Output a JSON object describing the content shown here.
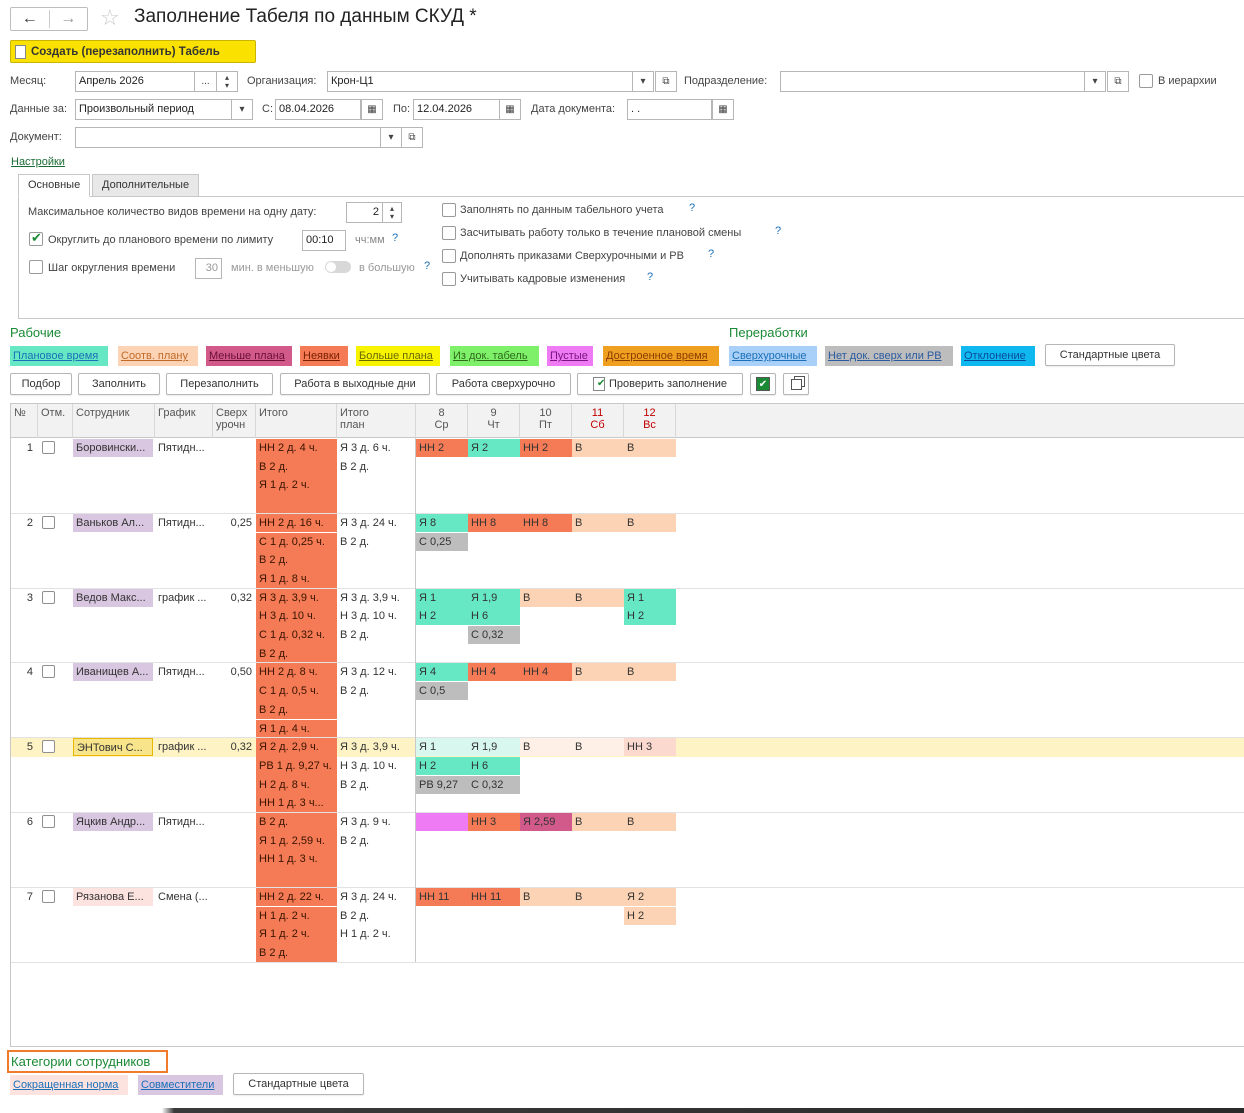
{
  "window": {
    "title": "Заполнение Табеля по данным СКУД *"
  },
  "nav": {
    "back": "←",
    "forward": "→",
    "star": "☆"
  },
  "toolbar": {
    "create_label": "Создать (перезаполнить) Табель"
  },
  "form": {
    "month_label": "Месяц:",
    "month_value": "Апрель 2026",
    "org_label": "Организация:",
    "org_value": "Крон-Ц1",
    "dept_label": "Подразделение:",
    "dept_value": "",
    "hierarchy_label": "В иерархии",
    "data_for_label": "Данные за:",
    "period_value": "Произвольный период",
    "from_label": "С:",
    "from_value": "08.04.2026",
    "to_label": "По:",
    "to_value": "12.04.2026",
    "docdate_label": "Дата документа:",
    "docdate_value": ". .",
    "document_label": "Документ:",
    "document_value": "",
    "settings_link": "Настройки",
    "ellipsis": "...",
    "dropdown": "▾",
    "open": "⧉",
    "calendar": "▦"
  },
  "tabs": [
    {
      "label": "Основные"
    },
    {
      "label": "Дополнительные"
    }
  ],
  "settings": {
    "max_types_label": "Максимальное количество видов времени на одну дату:",
    "max_types_value": "2",
    "round_label": "Округлить до планового времени по лимиту",
    "round_value": "00:10",
    "round_unit": "чч:мм",
    "step_label": "Шаг округления времени",
    "step_value": "30",
    "step_unit": "мин. в меньшую",
    "step_bigger": "в большую",
    "right_options": [
      {
        "label": "Заполнять по данным табельного учета"
      },
      {
        "label": "Засчитывать работу только в течение плановой смены"
      },
      {
        "label": "Дополнять приказами Сверхурочными и РВ"
      },
      {
        "label": "Учитывать кадровые изменения"
      }
    ],
    "q": "?"
  },
  "legend": {
    "work_title": "Рабочие",
    "overtime_title": "Переработки",
    "items": [
      {
        "label": "Плановое время",
        "bg": "#66e8c4",
        "color": "#1a6fb7"
      },
      {
        "label": "Соотв. плану",
        "bg": "#fcd3b4",
        "color": "#c06a2a"
      },
      {
        "label": "Меньше плана",
        "bg": "#d25a8a",
        "color": "#6a1035"
      },
      {
        "label": "Неявки",
        "bg": "#f47b55",
        "color": "#7a1e00"
      },
      {
        "label": "Больше плана",
        "bg": "#f8f400",
        "color": "#6a6a00"
      },
      {
        "label": "Из док. табель",
        "bg": "#7ef06a",
        "color": "#2f6a1a"
      },
      {
        "label": "Пустые",
        "bg": "#ee7af4",
        "color": "#7a1580"
      },
      {
        "label": "Достроенное время",
        "bg": "#f0a020",
        "color": "#8a3a00"
      },
      {
        "label": "Сверхурочные",
        "bg": "#a8d0f8",
        "color": "#1a6fb7"
      },
      {
        "label": "Нет док. сверх или РВ",
        "bg": "#bdbdbd",
        "color": "#2a5aa0"
      },
      {
        "label": "Отклонение",
        "bg": "#10b8f0",
        "color": "#0a4a9a"
      }
    ],
    "std_colors_label": "Стандартные цвета"
  },
  "actions": {
    "select": "Подбор",
    "fill": "Заполнить",
    "refill": "Перезаполнить",
    "weekend": "Работа в выходные дни",
    "overtime": "Работа сверхурочно",
    "check": "Проверить заполнение"
  },
  "table": {
    "headers": {
      "num": "№",
      "mark": "Отм.",
      "employee": "Сотрудник",
      "schedule": "График",
      "overtime": "Сверх урочн",
      "total": "Итого",
      "total_plan": "Итого план"
    },
    "days": [
      {
        "d": "8",
        "w": "Ср"
      },
      {
        "d": "9",
        "w": "Чт"
      },
      {
        "d": "10",
        "w": "Пт"
      },
      {
        "d": "11",
        "w": "Сб"
      },
      {
        "d": "12",
        "w": "Вс"
      }
    ],
    "rows": [
      {
        "num": "1",
        "name": "Боровински...",
        "name_bg": "#d9c6e0",
        "sched": "Пятидн...",
        "ot": "",
        "lines": 4,
        "total": [
          "НН 2 д. 4 ч.",
          "В 2 д.",
          "Я 1 д. 2 ч.",
          ""
        ],
        "plan": [
          "Я 3 д. 6 ч.",
          "В 2 д.",
          "",
          ""
        ],
        "days": [
          [
            {
              "t": "НН 2",
              "bg": "#f47b55"
            },
            {
              "t": "Я 2",
              "bg": "#66e8c4"
            },
            {
              "t": "НН 2",
              "bg": "#f47b55"
            },
            {
              "t": "В",
              "bg": "#fcd3b4"
            },
            {
              "t": "В",
              "bg": "#fcd3b4"
            }
          ]
        ]
      },
      {
        "num": "2",
        "name": "Ваньков Ал...",
        "name_bg": "#d9c6e0",
        "sched": "Пятидн...",
        "ot": "0,25",
        "lines": 4,
        "total": [
          "НН 2 д. 16 ч.",
          "С 1 д. 0,25 ч.",
          "В 2 д.",
          "Я 1 д. 8 ч."
        ],
        "plan": [
          "Я 3 д. 24 ч.",
          "В 2 д.",
          "",
          ""
        ],
        "days": [
          [
            {
              "t": "Я 8",
              "bg": "#66e8c4"
            },
            {
              "t": "НН 8",
              "bg": "#f47b55"
            },
            {
              "t": "НН 8",
              "bg": "#f47b55"
            },
            {
              "t": "В",
              "bg": "#fcd3b4"
            },
            {
              "t": "В",
              "bg": "#fcd3b4"
            }
          ],
          [
            {
              "t": "С 0,25",
              "bg": "#bdbdbd"
            },
            {
              "t": "",
              "bg": ""
            },
            {
              "t": "",
              "bg": ""
            },
            {
              "t": "",
              "bg": ""
            },
            {
              "t": "",
              "bg": ""
            }
          ]
        ]
      },
      {
        "num": "3",
        "name": "Ведов Макс...",
        "name_bg": "#d9c6e0",
        "sched": "график ...",
        "ot": "0,32",
        "lines": 4,
        "total": [
          "Я 3 д. 3,9 ч.",
          "Н 3 д. 10 ч.",
          "С 1 д. 0,32 ч.",
          "В 2 д."
        ],
        "plan": [
          "Я 3 д. 3,9 ч.",
          "Н 3 д. 10 ч.",
          "В 2 д.",
          ""
        ],
        "days": [
          [
            {
              "t": "Я 1",
              "bg": "#66e8c4"
            },
            {
              "t": "Я 1,9",
              "bg": "#66e8c4"
            },
            {
              "t": "В",
              "bg": "#fcd3b4"
            },
            {
              "t": "В",
              "bg": "#fcd3b4"
            },
            {
              "t": "Я 1",
              "bg": "#66e8c4"
            }
          ],
          [
            {
              "t": "Н 2",
              "bg": "#66e8c4"
            },
            {
              "t": "Н 6",
              "bg": "#66e8c4"
            },
            {
              "t": "",
              "bg": ""
            },
            {
              "t": "",
              "bg": ""
            },
            {
              "t": "Н 2",
              "bg": "#66e8c4"
            }
          ],
          [
            {
              "t": "",
              "bg": ""
            },
            {
              "t": "С 0,32",
              "bg": "#bdbdbd"
            },
            {
              "t": "",
              "bg": ""
            },
            {
              "t": "",
              "bg": ""
            },
            {
              "t": "",
              "bg": ""
            }
          ]
        ]
      },
      {
        "num": "4",
        "name": "Иванищев А...",
        "name_bg": "#d9c6e0",
        "sched": "Пятидн...",
        "ot": "0,50",
        "lines": 4,
        "total": [
          "НН 2 д. 8 ч.",
          "С 1 д. 0,5 ч.",
          "В 2 д.",
          "Я 1 д. 4 ч."
        ],
        "plan": [
          "Я 3 д. 12 ч.",
          "В 2 д.",
          "",
          ""
        ],
        "days": [
          [
            {
              "t": "Я 4",
              "bg": "#66e8c4"
            },
            {
              "t": "НН 4",
              "bg": "#f47b55"
            },
            {
              "t": "НН 4",
              "bg": "#f47b55"
            },
            {
              "t": "В",
              "bg": "#fcd3b4"
            },
            {
              "t": "В",
              "bg": "#fcd3b4"
            }
          ],
          [
            {
              "t": "С 0,5",
              "bg": "#bdbdbd"
            },
            {
              "t": "",
              "bg": ""
            },
            {
              "t": "",
              "bg": ""
            },
            {
              "t": "",
              "bg": ""
            },
            {
              "t": "",
              "bg": ""
            }
          ]
        ]
      },
      {
        "num": "5",
        "name": "ЭНТович С...",
        "name_bg": "#f8e48a",
        "sched": "график ...",
        "ot": "0,32",
        "lines": 4,
        "selected": true,
        "total": [
          "Я 2 д. 2,9 ч.",
          "РВ 1 д. 9,27 ч.",
          "Н 2 д. 8 ч.",
          "НН 1 д. 3 ч..."
        ],
        "plan": [
          "Я 3 д. 3,9 ч.",
          "Н 3 д. 10 ч.",
          "В 2 д.",
          ""
        ],
        "days": [
          [
            {
              "t": "Я 1",
              "bg": "#d8f7ee"
            },
            {
              "t": "Я 1,9",
              "bg": "#d8f7ee"
            },
            {
              "t": "В",
              "bg": "#fef0e6"
            },
            {
              "t": "В",
              "bg": "#fef0e6"
            },
            {
              "t": "НН 3",
              "bg": "#fbd9cf"
            }
          ],
          [
            {
              "t": "Н 2",
              "bg": "#66e8c4"
            },
            {
              "t": "Н 6",
              "bg": "#66e8c4"
            },
            {
              "t": "",
              "bg": ""
            },
            {
              "t": "",
              "bg": ""
            },
            {
              "t": "",
              "bg": ""
            }
          ],
          [
            {
              "t": "РВ 9,27",
              "bg": "#bdbdbd"
            },
            {
              "t": "С 0,32",
              "bg": "#bdbdbd"
            },
            {
              "t": "",
              "bg": ""
            },
            {
              "t": "",
              "bg": ""
            },
            {
              "t": "",
              "bg": ""
            }
          ]
        ]
      },
      {
        "num": "6",
        "name": "Яцкив Андр...",
        "name_bg": "#d9c6e0",
        "sched": "Пятидн...",
        "ot": "",
        "lines": 4,
        "total": [
          "В 2 д.",
          "Я 1 д. 2,59 ч.",
          "НН 1 д. 3 ч.",
          ""
        ],
        "plan": [
          "Я 3 д. 9 ч.",
          "В 2 д.",
          "",
          ""
        ],
        "days": [
          [
            {
              "t": "",
              "bg": "#ee7af4"
            },
            {
              "t": "НН 3",
              "bg": "#f47b55"
            },
            {
              "t": "Я 2,59",
              "bg": "#d25a8a"
            },
            {
              "t": "В",
              "bg": "#fcd3b4"
            },
            {
              "t": "В",
              "bg": "#fcd3b4"
            }
          ]
        ]
      },
      {
        "num": "7",
        "name": "Рязанова Е...",
        "name_bg": "#fde3e0",
        "sched": "Смена (...",
        "ot": "",
        "lines": 4,
        "total": [
          "НН 2 д. 22 ч.",
          "Н 1 д. 2 ч.",
          "Я 1 д. 2 ч.",
          "В 2 д."
        ],
        "plan": [
          "Я 3 д. 24 ч.",
          "В 2 д.",
          "Н 1 д. 2 ч.",
          ""
        ],
        "days": [
          [
            {
              "t": "НН 11",
              "bg": "#f47b55"
            },
            {
              "t": "НН 11",
              "bg": "#f47b55"
            },
            {
              "t": "В",
              "bg": "#fcd3b4"
            },
            {
              "t": "В",
              "bg": "#fcd3b4"
            },
            {
              "t": "Я 2",
              "bg": "#fcd3b4"
            }
          ],
          [
            {
              "t": "",
              "bg": ""
            },
            {
              "t": "",
              "bg": ""
            },
            {
              "t": "",
              "bg": ""
            },
            {
              "t": "",
              "bg": ""
            },
            {
              "t": "Н 2",
              "bg": "#fcd3b4"
            }
          ]
        ]
      }
    ]
  },
  "categories": {
    "title": "Категории сотрудников",
    "items": [
      {
        "label": "Сокращенная норма",
        "bg": "#fde3e0",
        "color": "#1a6fb7"
      },
      {
        "label": "Совместители",
        "bg": "#d9c6e0",
        "color": "#1a6fb7"
      }
    ],
    "std_colors_label": "Стандартные цвета"
  },
  "colors": {
    "total_col_bg": "#f47b55",
    "selected_row_bg": "#fdf3c4"
  }
}
